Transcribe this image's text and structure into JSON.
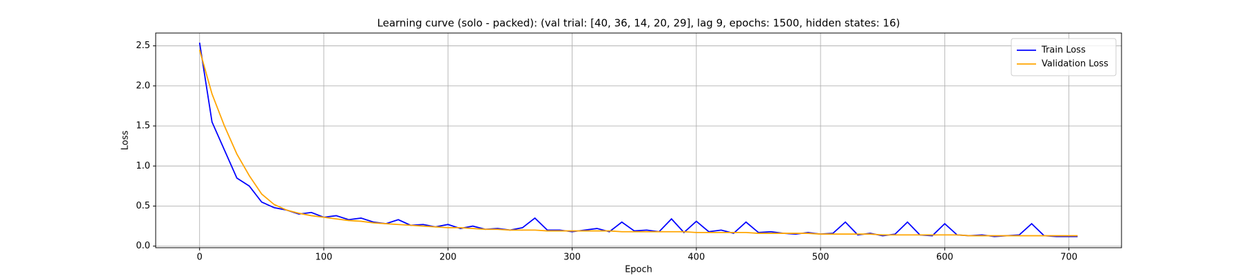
{
  "chart_data": {
    "type": "line",
    "title": "Learning curve (solo - packed): (val trial: [40, 36, 14, 20, 29], lag 9, epochs: 1500, hidden states: 16)",
    "xlabel": "Epoch",
    "ylabel": "Loss",
    "x": [
      0,
      10,
      20,
      30,
      40,
      50,
      60,
      70,
      80,
      90,
      100,
      110,
      120,
      130,
      140,
      150,
      160,
      170,
      180,
      190,
      200,
      210,
      220,
      230,
      240,
      250,
      260,
      270,
      280,
      290,
      300,
      310,
      320,
      330,
      340,
      350,
      360,
      370,
      380,
      390,
      400,
      410,
      420,
      430,
      440,
      450,
      460,
      470,
      480,
      490,
      500,
      510,
      520,
      530,
      540,
      550,
      560,
      570,
      580,
      590,
      600,
      610,
      620,
      630,
      640,
      650,
      660,
      670,
      680,
      690,
      700,
      707
    ],
    "series": [
      {
        "name": "Train Loss",
        "color": "#0000ff",
        "values": [
          2.54,
          1.55,
          1.2,
          0.85,
          0.75,
          0.55,
          0.48,
          0.45,
          0.4,
          0.42,
          0.36,
          0.38,
          0.33,
          0.35,
          0.3,
          0.28,
          0.33,
          0.26,
          0.27,
          0.24,
          0.27,
          0.22,
          0.25,
          0.21,
          0.22,
          0.2,
          0.23,
          0.35,
          0.2,
          0.2,
          0.18,
          0.2,
          0.22,
          0.18,
          0.3,
          0.19,
          0.2,
          0.18,
          0.34,
          0.17,
          0.31,
          0.18,
          0.2,
          0.16,
          0.3,
          0.17,
          0.18,
          0.16,
          0.15,
          0.17,
          0.15,
          0.16,
          0.3,
          0.14,
          0.16,
          0.13,
          0.15,
          0.3,
          0.14,
          0.13,
          0.28,
          0.14,
          0.13,
          0.14,
          0.12,
          0.13,
          0.14,
          0.28,
          0.13,
          0.12,
          0.12,
          0.12
        ]
      },
      {
        "name": "Validation Loss",
        "color": "#ffa500",
        "values": [
          2.45,
          1.9,
          1.5,
          1.15,
          0.88,
          0.65,
          0.52,
          0.45,
          0.41,
          0.38,
          0.36,
          0.34,
          0.32,
          0.31,
          0.29,
          0.28,
          0.27,
          0.26,
          0.25,
          0.24,
          0.23,
          0.23,
          0.22,
          0.21,
          0.21,
          0.2,
          0.2,
          0.2,
          0.19,
          0.19,
          0.19,
          0.19,
          0.19,
          0.19,
          0.18,
          0.18,
          0.18,
          0.18,
          0.18,
          0.18,
          0.17,
          0.17,
          0.17,
          0.17,
          0.17,
          0.16,
          0.16,
          0.16,
          0.16,
          0.16,
          0.15,
          0.15,
          0.15,
          0.15,
          0.15,
          0.14,
          0.14,
          0.14,
          0.14,
          0.14,
          0.14,
          0.14,
          0.13,
          0.13,
          0.13,
          0.13,
          0.13,
          0.13,
          0.13,
          0.13,
          0.13,
          0.13
        ]
      }
    ],
    "xlim": [
      -35.35,
      742.35
    ],
    "ylim": [
      -0.02,
      2.66
    ],
    "xticks": [
      0,
      100,
      200,
      300,
      400,
      500,
      600,
      700
    ],
    "yticks": [
      {
        "value": 0,
        "label": "0.0"
      },
      0.5,
      {
        "value": 1,
        "label": "1.0"
      },
      1.5,
      {
        "value": 2,
        "label": "2.0"
      },
      2.5
    ],
    "grid": true,
    "legend": "upper right"
  }
}
